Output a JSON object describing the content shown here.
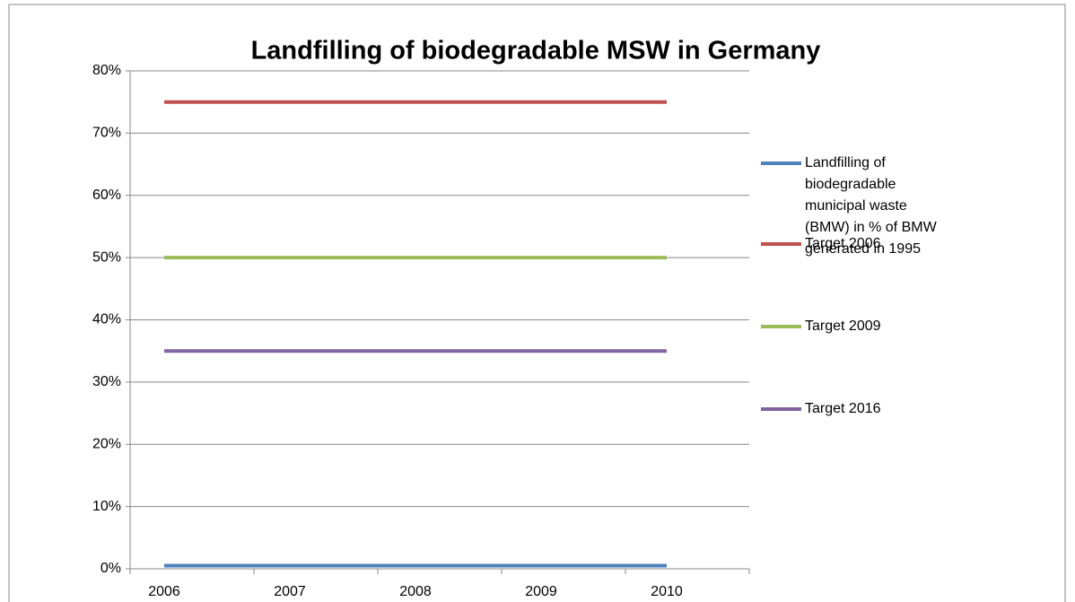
{
  "chart_data": {
    "type": "line",
    "title": "Landfilling of biodegradable MSW in Germany",
    "categories": [
      "2006",
      "2007",
      "2008",
      "2009",
      "2010"
    ],
    "series": [
      {
        "name": "Landfilling of biodegradable municipal waste (BMW) in % of BMW generated in 1995",
        "color": "#4f81bd",
        "values": [
          0.5,
          0.5,
          0.5,
          0.5,
          0.5
        ]
      },
      {
        "name": "Target 2006",
        "color": "#c0504d",
        "values": [
          75,
          75,
          75,
          75,
          75
        ]
      },
      {
        "name": "Target 2009",
        "color": "#9bbb59",
        "values": [
          50,
          50,
          50,
          50,
          50
        ]
      },
      {
        "name": "Target 2016",
        "color": "#8064a2",
        "values": [
          35,
          35,
          35,
          35,
          35
        ]
      }
    ],
    "ylim": [
      0,
      80
    ],
    "yticks": [
      {
        "value": 0,
        "label": "0%"
      },
      {
        "value": 10,
        "label": "10%"
      },
      {
        "value": 20,
        "label": "20%"
      },
      {
        "value": 30,
        "label": "30%"
      },
      {
        "value": 40,
        "label": "40%"
      },
      {
        "value": 50,
        "label": "50%"
      },
      {
        "value": 60,
        "label": "60%"
      },
      {
        "value": 70,
        "label": "70%"
      },
      {
        "value": 80,
        "label": "80%"
      }
    ],
    "grid": true,
    "legend": "right"
  }
}
